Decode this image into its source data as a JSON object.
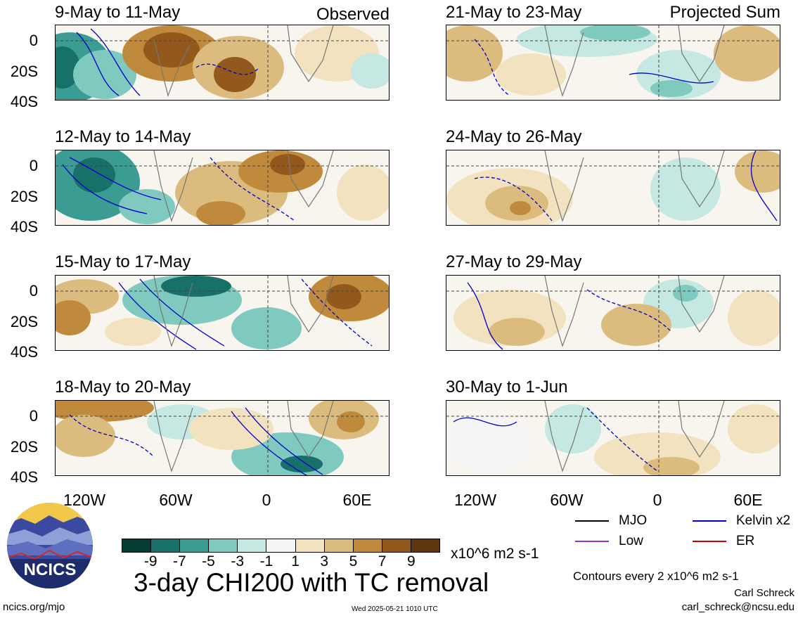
{
  "panels_left": [
    {
      "title": "9-May to 11-May",
      "tag": "Observed"
    },
    {
      "title": "12-May to 14-May",
      "tag": ""
    },
    {
      "title": "15-May to 17-May",
      "tag": ""
    },
    {
      "title": "18-May to 20-May",
      "tag": ""
    }
  ],
  "panels_right": [
    {
      "title": "21-May to 23-May",
      "tag": "Projected Sum"
    },
    {
      "title": "24-May to 26-May",
      "tag": ""
    },
    {
      "title": "27-May to 29-May",
      "tag": ""
    },
    {
      "title": "30-May to 1-Jun",
      "tag": ""
    }
  ],
  "y_ticks": [
    "0",
    "20S",
    "40S"
  ],
  "x_ticks": [
    "120W",
    "60W",
    "0",
    "60E"
  ],
  "colorbar": {
    "colors": [
      "#033d33",
      "#17706a",
      "#3a9c93",
      "#7fc9bf",
      "#c5e8e2",
      "#f5f5f5",
      "#f3e2bf",
      "#dcbc7e",
      "#c08a3c",
      "#93591c",
      "#5e3710"
    ],
    "ticks": [
      "-9",
      "-7",
      "-5",
      "-3",
      "-1",
      "1",
      "3",
      "5",
      "7",
      "9"
    ],
    "units": "x10^6 m2 s-1"
  },
  "main_title": "3-day CHI200 with TC removal",
  "legend": [
    {
      "label": "MJO",
      "color": "#000000"
    },
    {
      "label": "Kelvin x2",
      "color": "#0000cc"
    },
    {
      "label": "Low",
      "color": "#9933cc"
    },
    {
      "label": "ER",
      "color": "#cc0000"
    }
  ],
  "contour_note": "Contours every 2 x10^6 m2 s-1",
  "author": "Carl Schreck",
  "email": "carl_schreck@ncsu.edu",
  "site": "ncics.org/mjo",
  "timestamp": "Wed 2025-05-21 1010 UTC",
  "logo_text": "NCICS"
}
